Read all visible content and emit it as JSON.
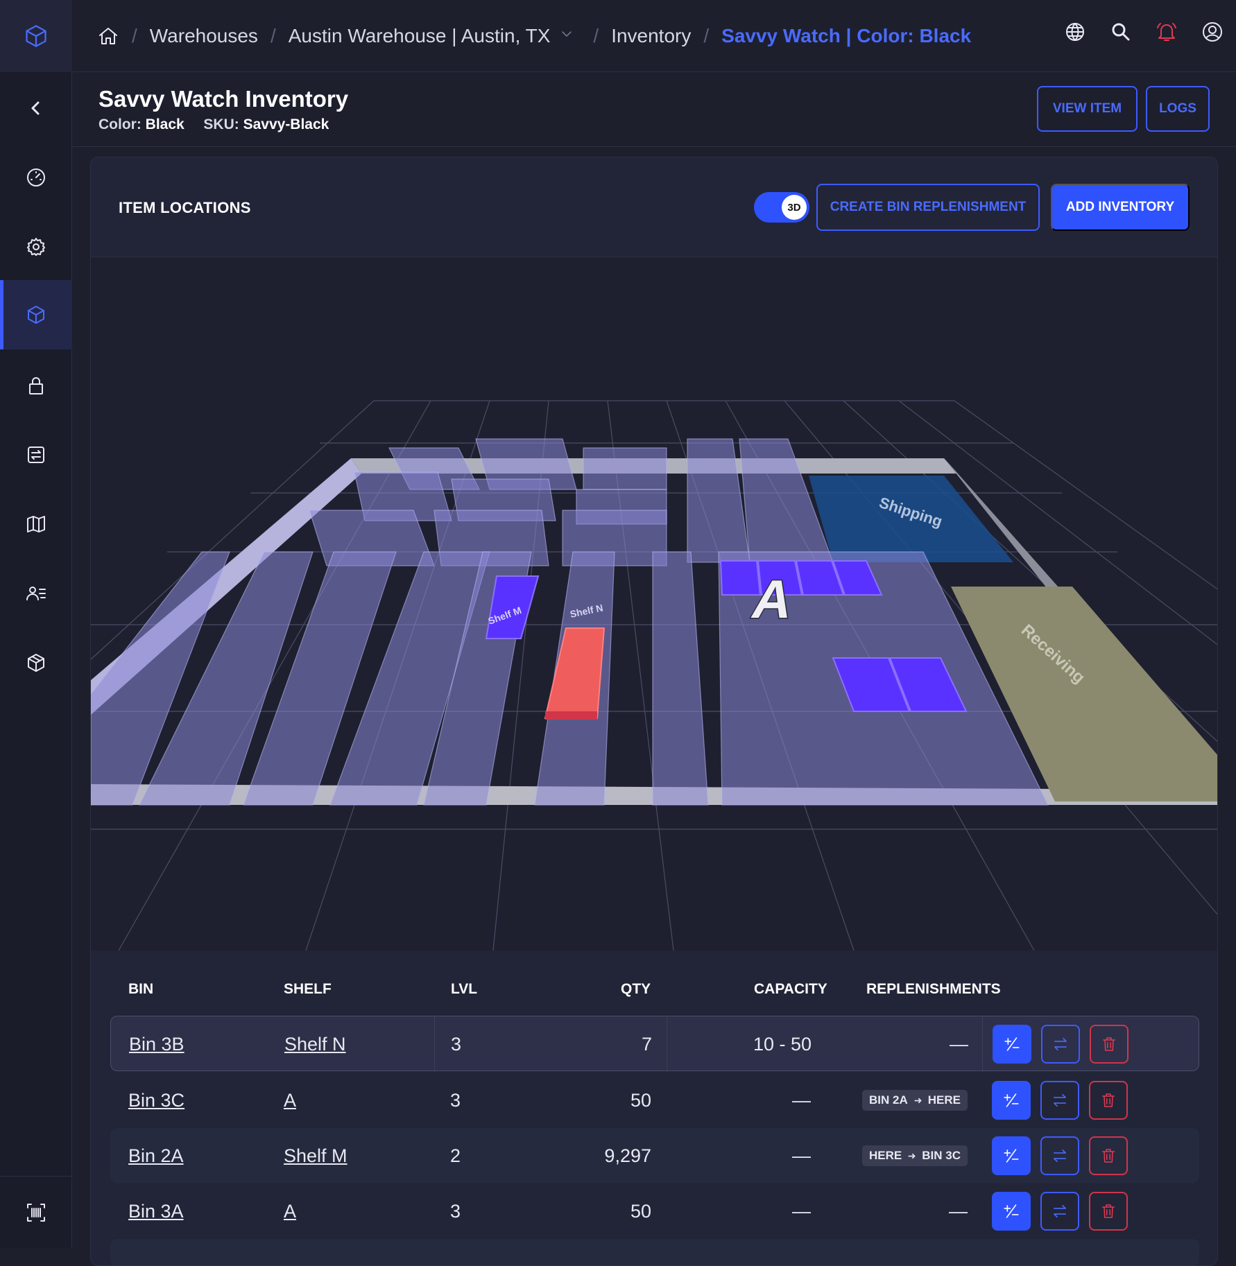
{
  "breadcrumb": {
    "warehouses": "Warehouses",
    "warehouse": "Austin Warehouse | Austin, TX",
    "inventory": "Inventory",
    "current": "Savvy Watch | Color: Black",
    "separator": "/"
  },
  "header": {
    "title": "Savvy Watch Inventory",
    "color_label": "Color:",
    "color_value": "Black",
    "sku_label": "SKU:",
    "sku_value": "Savvy-Black",
    "view_item": "VIEW ITEM",
    "logs": "LOGS"
  },
  "locations": {
    "title": "ITEM LOCATIONS",
    "toggle_label": "3D",
    "toggle_on": true,
    "create_replenishment": "CREATE BIN REPLENISHMENT",
    "add_inventory": "ADD INVENTORY"
  },
  "map": {
    "labels": {
      "shelf_m": "Shelf M",
      "shelf_n": "Shelf N",
      "zone_a": "A",
      "shipping": "Shipping",
      "receiving": "Receiving"
    },
    "colors": {
      "shelf": "#8b87d6",
      "bin": "#5a32ff",
      "selected_bin": "#ef5d5d",
      "shipping": "#1a4f8e",
      "receiving": "#8b8a6f",
      "wall": "#b9bac4"
    }
  },
  "table": {
    "columns": {
      "bin": "BIN",
      "shelf": "SHELF",
      "lvl": "LVL",
      "qty": "QTY",
      "capacity": "CAPACITY",
      "replenishments": "REPLENISHMENTS"
    },
    "rows": [
      {
        "bin": "Bin 3B",
        "shelf": "Shelf N",
        "lvl": "3",
        "qty": "7",
        "capacity": "10 - 50",
        "repl": "—",
        "repl_from": "",
        "repl_to": ""
      },
      {
        "bin": "Bin 3C",
        "shelf": "A",
        "lvl": "3",
        "qty": "50",
        "capacity": "—",
        "repl": "",
        "repl_from": "BIN 2A",
        "repl_to": "HERE"
      },
      {
        "bin": "Bin 2A",
        "shelf": "Shelf M",
        "lvl": "2",
        "qty": "9,297",
        "capacity": "—",
        "repl": "",
        "repl_from": "HERE",
        "repl_to": "BIN 3C"
      },
      {
        "bin": "Bin 3A",
        "shelf": "A",
        "lvl": "3",
        "qty": "50",
        "capacity": "—",
        "repl": "—",
        "repl_from": "",
        "repl_to": ""
      }
    ]
  },
  "icons": {
    "logo": "cube-icon",
    "collapse": "chevron-left-icon",
    "nav": [
      "dashboard-icon",
      "gear-icon",
      "cube-icon",
      "lock-icon",
      "transfer-icon",
      "map-icon",
      "users-list-icon",
      "package-icon"
    ],
    "bottom": "barcode-scan-icon",
    "top": [
      "globe-icon",
      "search-icon",
      "bell-icon",
      "user-circle-icon"
    ],
    "accent": "#3e5bff",
    "danger": "#e23a52"
  }
}
